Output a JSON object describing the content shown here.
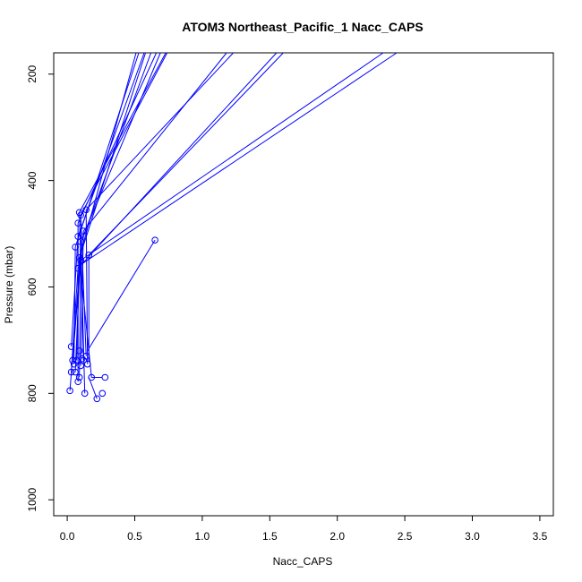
{
  "chart_data": {
    "type": "line",
    "title": "ATOM3 Northeast_Pacific_1 Nacc_CAPS",
    "xlabel": "Nacc_CAPS",
    "ylabel": "Pressure (mbar)",
    "xlim": [
      -0.1,
      3.6
    ],
    "ylim": [
      1030,
      160
    ],
    "y_reversed": true,
    "grid": false,
    "legend": "none",
    "color": "#0000ff",
    "x_ticks": [
      0.0,
      0.5,
      1.0,
      1.5,
      2.0,
      2.5,
      3.0,
      3.5
    ],
    "x_tick_labels": [
      "0.0",
      "0.5",
      "1.0",
      "1.5",
      "2.0",
      "2.5",
      "3.0",
      "3.5"
    ],
    "y_ticks": [
      200,
      400,
      600,
      800,
      1000
    ],
    "y_tick_labels": [
      "200",
      "400",
      "600",
      "800",
      "1000"
    ],
    "points": [
      {
        "x": 0.02,
        "y": 795
      },
      {
        "x": 0.03,
        "y": 760
      },
      {
        "x": 0.04,
        "y": 738
      },
      {
        "x": 0.03,
        "y": 712
      },
      {
        "x": 0.05,
        "y": 745
      },
      {
        "x": 0.07,
        "y": 738
      },
      {
        "x": 0.06,
        "y": 760
      },
      {
        "x": 0.08,
        "y": 778
      },
      {
        "x": 0.09,
        "y": 770
      },
      {
        "x": 0.1,
        "y": 748
      },
      {
        "x": 0.12,
        "y": 738
      },
      {
        "x": 0.14,
        "y": 730
      },
      {
        "x": 0.13,
        "y": 800
      },
      {
        "x": 0.15,
        "y": 745
      },
      {
        "x": 0.18,
        "y": 770
      },
      {
        "x": 0.22,
        "y": 810
      },
      {
        "x": 0.26,
        "y": 800
      },
      {
        "x": 0.28,
        "y": 770
      },
      {
        "x": 0.09,
        "y": 720
      },
      {
        "x": 0.11,
        "y": 735
      },
      {
        "x": 0.06,
        "y": 525
      },
      {
        "x": 0.08,
        "y": 505
      },
      {
        "x": 0.08,
        "y": 480
      },
      {
        "x": 0.09,
        "y": 460
      },
      {
        "x": 0.1,
        "y": 465
      },
      {
        "x": 0.1,
        "y": 515
      },
      {
        "x": 0.09,
        "y": 545
      },
      {
        "x": 0.12,
        "y": 495
      },
      {
        "x": 0.14,
        "y": 455
      },
      {
        "x": 0.16,
        "y": 540
      },
      {
        "x": 0.08,
        "y": 565
      },
      {
        "x": 0.1,
        "y": 550
      },
      {
        "x": 0.65,
        "y": 512
      }
    ],
    "segments": [
      [
        [
          0.02,
          795
        ],
        [
          0.09,
          570
        ]
      ],
      [
        [
          0.03,
          760
        ],
        [
          0.08,
          565
        ]
      ],
      [
        [
          0.04,
          738
        ],
        [
          0.1,
          550
        ]
      ],
      [
        [
          0.03,
          712
        ],
        [
          0.08,
          505
        ]
      ],
      [
        [
          0.05,
          745
        ],
        [
          0.06,
          525
        ]
      ],
      [
        [
          0.07,
          738
        ],
        [
          0.09,
          545
        ]
      ],
      [
        [
          0.06,
          760
        ],
        [
          0.1,
          515
        ]
      ],
      [
        [
          0.08,
          778
        ],
        [
          0.08,
          480
        ]
      ],
      [
        [
          0.09,
          770
        ],
        [
          0.1,
          550
        ]
      ],
      [
        [
          0.1,
          748
        ],
        [
          0.12,
          495
        ]
      ],
      [
        [
          0.12,
          738
        ],
        [
          0.09,
          460
        ]
      ],
      [
        [
          0.14,
          730
        ],
        [
          0.1,
          465
        ]
      ],
      [
        [
          0.13,
          800
        ],
        [
          0.1,
          515
        ]
      ],
      [
        [
          0.15,
          745
        ],
        [
          0.14,
          455
        ]
      ],
      [
        [
          0.16,
          740
        ],
        [
          0.16,
          540
        ]
      ],
      [
        [
          0.18,
          770
        ],
        [
          0.09,
          545
        ]
      ],
      [
        [
          0.22,
          810
        ],
        [
          0.16,
          770
        ]
      ],
      [
        [
          0.18,
          770
        ],
        [
          0.26,
          770
        ]
      ],
      [
        [
          0.15,
          720
        ],
        [
          0.65,
          512
        ]
      ],
      [
        [
          0.06,
          525
        ],
        [
          0.53,
          160
        ]
      ],
      [
        [
          0.08,
          505
        ],
        [
          0.57,
          160
        ]
      ],
      [
        [
          0.08,
          480
        ],
        [
          0.66,
          160
        ]
      ],
      [
        [
          0.09,
          460
        ],
        [
          0.73,
          160
        ]
      ],
      [
        [
          0.1,
          465
        ],
        [
          0.74,
          160
        ]
      ],
      [
        [
          0.1,
          515
        ],
        [
          0.69,
          160
        ]
      ],
      [
        [
          0.09,
          545
        ],
        [
          0.51,
          160
        ]
      ],
      [
        [
          0.12,
          495
        ],
        [
          1.18,
          160
        ]
      ],
      [
        [
          0.14,
          455
        ],
        [
          1.23,
          160
        ]
      ],
      [
        [
          0.16,
          540
        ],
        [
          1.6,
          160
        ]
      ],
      [
        [
          0.08,
          565
        ],
        [
          1.55,
          160
        ]
      ],
      [
        [
          0.1,
          550
        ],
        [
          2.34,
          160
        ]
      ],
      [
        [
          0.09,
          560
        ],
        [
          2.44,
          160
        ]
      ],
      [
        [
          0.12,
          505
        ],
        [
          0.62,
          160
        ]
      ],
      [
        [
          0.11,
          530
        ],
        [
          0.58,
          160
        ]
      ]
    ]
  }
}
